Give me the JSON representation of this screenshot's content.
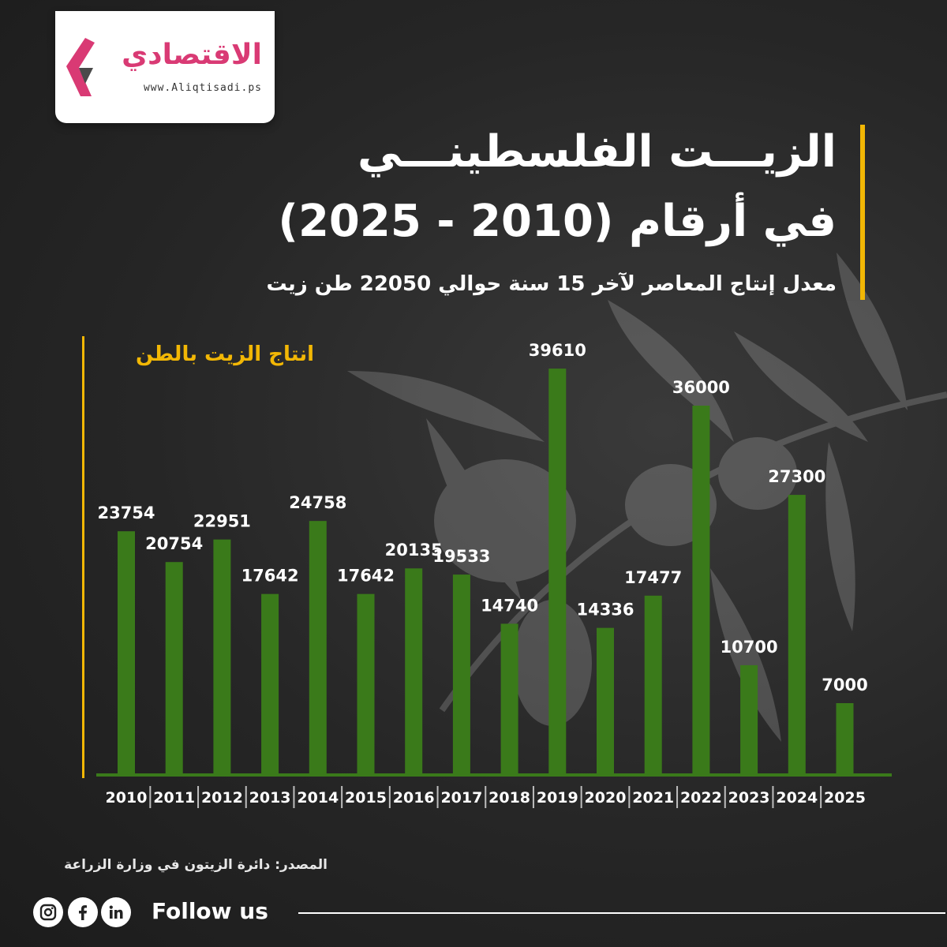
{
  "brand": {
    "name": "الاقتصادي",
    "url": "www.Aliqtisadi.ps",
    "accent_color": "#d93a74"
  },
  "header": {
    "title_line1": "الزيـــت الفلسطينـــي",
    "title_line2": "في أرقام (2010 - 2025)",
    "subtitle": "معدل إنتاج المعاصر لآخر 15 سنة حوالي 22050 طن زيت",
    "highlight_color": "#f2b705"
  },
  "chart_data": {
    "type": "bar",
    "title": "انتاج الزيت بالطن",
    "categories": [
      "2010",
      "2011",
      "2012",
      "2013",
      "2014",
      "2015",
      "2016",
      "2017",
      "2018",
      "2019",
      "2020",
      "2021",
      "2022",
      "2023",
      "2024",
      "2025"
    ],
    "values": [
      23754,
      20754,
      22951,
      17642,
      24758,
      17642,
      20135,
      19533,
      14740,
      39610,
      14336,
      17477,
      36000,
      10700,
      27300,
      7000
    ],
    "ylim": [
      0,
      40000
    ],
    "bar_color": "#3a7a1a",
    "axis_color": "#f2b705",
    "grid": false,
    "data_labels": true
  },
  "footer": {
    "source": "المصدر: دائرة الزيتون في وزارة الزراعة",
    "follow_label": "Follow us",
    "social_icons": [
      "instagram-icon",
      "facebook-icon",
      "linkedin-icon"
    ]
  }
}
